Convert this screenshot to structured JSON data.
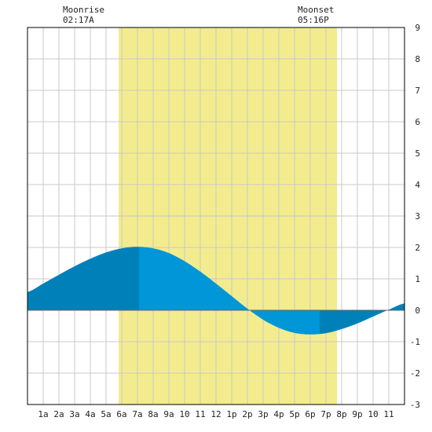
{
  "moon": {
    "rise_label": "Moonrise",
    "rise_time": "02:17A",
    "rise_hour": 2.283,
    "set_label": "Moonset",
    "set_time": "05:16P",
    "set_hour": 17.267
  },
  "chart_data": {
    "type": "area",
    "title": "",
    "xlabel": "",
    "ylabel": "",
    "x_range": [
      0,
      24
    ],
    "ylim": [
      -3,
      9
    ],
    "y_ticks": [
      "-3",
      "-2",
      "-1",
      "0",
      "1",
      "2",
      "3",
      "4",
      "5",
      "6",
      "7",
      "8",
      "9"
    ],
    "x_tick_labels": [
      "1a",
      "2a",
      "3a",
      "4a",
      "5a",
      "6a",
      "7a",
      "8a",
      "9a",
      "10",
      "11",
      "12",
      "1p",
      "2p",
      "3p",
      "4p",
      "5p",
      "6p",
      "7p",
      "8p",
      "9p",
      "10",
      "11"
    ],
    "grid": true,
    "daylight": {
      "start_hour": 5.8,
      "end_hour": 19.7
    },
    "high_tide": {
      "hour": 7.1,
      "height": 2.02
    },
    "low_tide": {
      "hour": 18.6,
      "height": -0.75
    },
    "series": [
      {
        "x": [
          0,
          1,
          2,
          3,
          4,
          5,
          6,
          7,
          8,
          9,
          10,
          11,
          12,
          13,
          14,
          15,
          16,
          17,
          18,
          19,
          20,
          21,
          22,
          23,
          24
        ],
        "values": [
          0.58,
          0.85,
          1.13,
          1.4,
          1.64,
          1.84,
          1.97,
          2.02,
          1.97,
          1.82,
          1.56,
          1.23,
          0.85,
          0.45,
          0.05,
          -0.3,
          -0.56,
          -0.72,
          -0.77,
          -0.73,
          -0.6,
          -0.42,
          -0.2,
          0.02,
          0.22
        ]
      }
    ],
    "colors": {
      "daylight": "#f3ec8e",
      "tide_dark": "#0080b8",
      "tide_light": "#0096d8",
      "grid": "#c8c8c8",
      "frame": "#000000"
    }
  }
}
